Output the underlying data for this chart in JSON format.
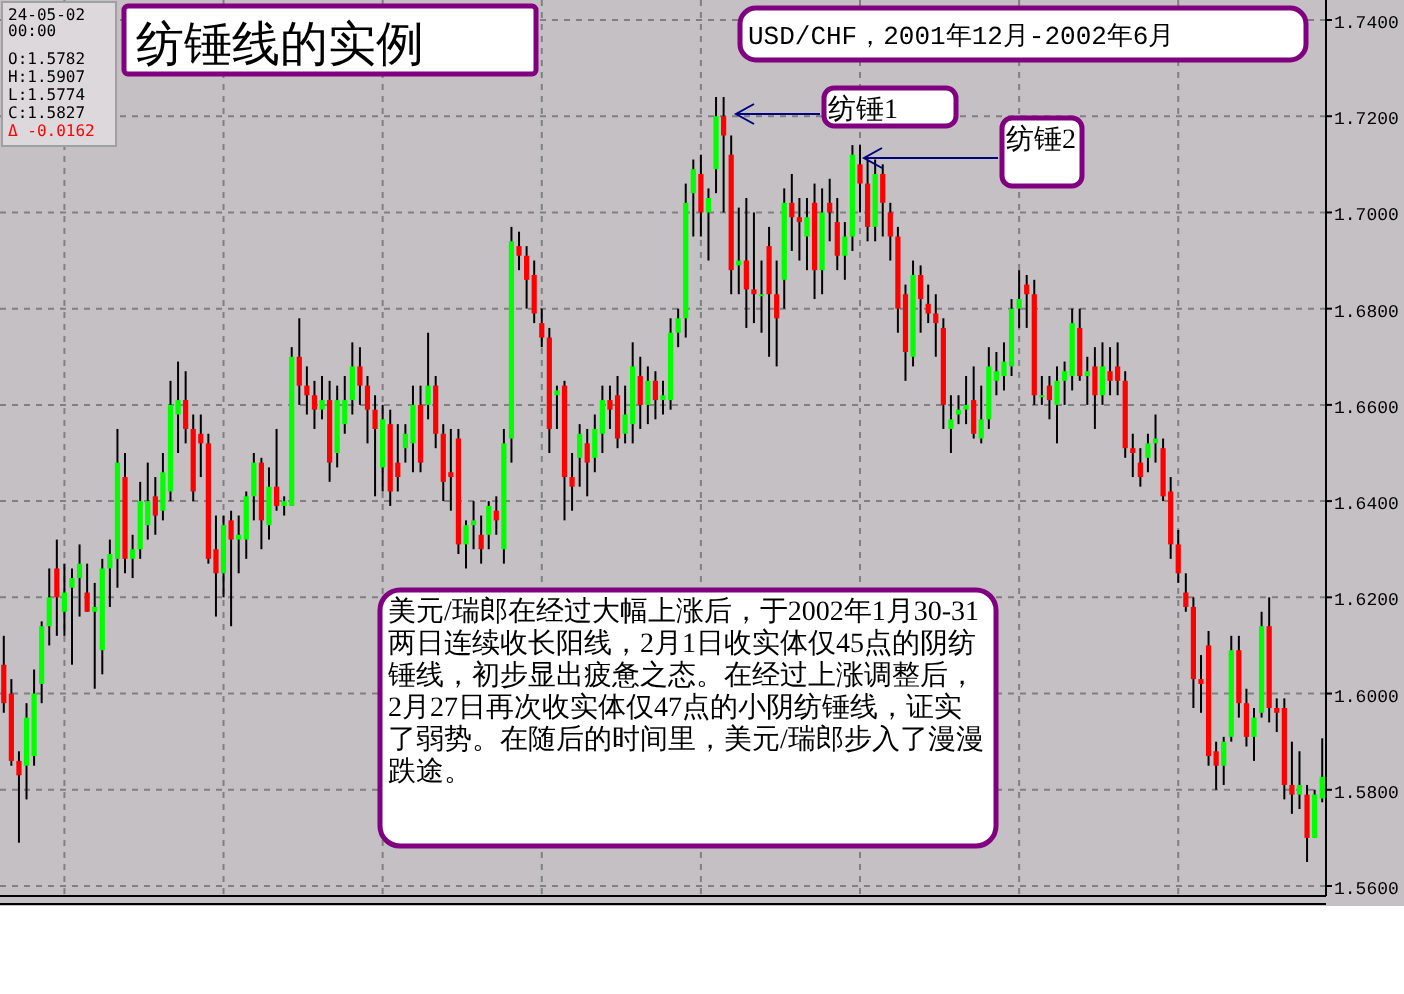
{
  "chart_data": {
    "type": "candlestick",
    "title": "纺锤线的实例",
    "subtitle": "USD/CHF，2001年12月-2002年6月",
    "categories": [
      null,
      null,
      null,
      null,
      null,
      null,
      null,
      null,
      null,
      null,
      null,
      null,
      null,
      null,
      null,
      null,
      null,
      null,
      null,
      null,
      null,
      null,
      null,
      null,
      null,
      null,
      null,
      null,
      null,
      null,
      null,
      null,
      null,
      null,
      null,
      null,
      null,
      null,
      null,
      null,
      null,
      null,
      null,
      null,
      null,
      null,
      null,
      null,
      null,
      null,
      null,
      null,
      null,
      null,
      null,
      null,
      null,
      null,
      null,
      null,
      null,
      null,
      null,
      null,
      null,
      null,
      null,
      null,
      null,
      null,
      null,
      null,
      null,
      null,
      null,
      null,
      null,
      null,
      null,
      null,
      null,
      null,
      null,
      null,
      null,
      null,
      null,
      null,
      null,
      null,
      null,
      null,
      null,
      null,
      null,
      null,
      null,
      null,
      null,
      null,
      null,
      null,
      null,
      null,
      null,
      null,
      null,
      null,
      null,
      null,
      null,
      null,
      null,
      null,
      null,
      null,
      null,
      null,
      null,
      null,
      null,
      null,
      null,
      null,
      null,
      null,
      null,
      null,
      null,
      null,
      null,
      null,
      null,
      null,
      null,
      null,
      null,
      null,
      null,
      null,
      null,
      null,
      null,
      null,
      null,
      null,
      null,
      null,
      null,
      null,
      null,
      null,
      null,
      null,
      null,
      null,
      null,
      null,
      null,
      null,
      null,
      null,
      null,
      null,
      null,
      null,
      null,
      null,
      null,
      null,
      null,
      null,
      null,
      null,
      null
    ],
    "ohlc": [
      [
        1.606,
        1.612,
        1.596,
        1.598
      ],
      [
        1.6,
        1.603,
        1.585,
        1.586
      ],
      [
        1.586,
        1.588,
        1.569,
        1.583
      ],
      [
        1.585,
        1.598,
        1.578,
        1.595
      ],
      [
        1.587,
        1.605,
        1.585,
        1.6
      ],
      [
        1.602,
        1.615,
        1.598,
        1.614
      ],
      [
        1.614,
        1.626,
        1.61,
        1.62
      ],
      [
        1.626,
        1.632,
        1.612,
        1.62
      ],
      [
        1.617,
        1.627,
        1.612,
        1.621
      ],
      [
        1.622,
        1.626,
        1.606,
        1.624
      ],
      [
        1.624,
        1.631,
        1.616,
        1.627
      ],
      [
        1.621,
        1.627,
        1.617,
        1.617
      ],
      [
        1.617,
        1.623,
        1.601,
        1.618
      ],
      [
        1.609,
        1.628,
        1.604,
        1.626
      ],
      [
        1.626,
        1.632,
        1.618,
        1.629
      ],
      [
        1.628,
        1.655,
        1.622,
        1.648
      ],
      [
        1.645,
        1.65,
        1.625,
        1.628
      ],
      [
        1.628,
        1.633,
        1.624,
        1.63
      ],
      [
        1.63,
        1.644,
        1.628,
        1.64
      ],
      [
        1.635,
        1.648,
        1.632,
        1.64
      ],
      [
        1.641,
        1.645,
        1.633,
        1.637
      ],
      [
        1.638,
        1.65,
        1.636,
        1.646
      ],
      [
        1.642,
        1.665,
        1.64,
        1.66
      ],
      [
        1.658,
        1.669,
        1.65,
        1.661
      ],
      [
        1.661,
        1.667,
        1.652,
        1.655
      ],
      [
        1.655,
        1.658,
        1.64,
        1.642
      ],
      [
        1.654,
        1.658,
        1.645,
        1.652
      ],
      [
        1.652,
        1.654,
        1.627,
        1.628
      ],
      [
        1.63,
        1.637,
        1.616,
        1.625
      ],
      [
        1.625,
        1.637,
        1.62,
        1.635
      ],
      [
        1.636,
        1.638,
        1.614,
        1.632
      ],
      [
        1.632,
        1.637,
        1.625,
        1.633
      ],
      [
        1.632,
        1.642,
        1.628,
        1.641
      ],
      [
        1.641,
        1.65,
        1.636,
        1.648
      ],
      [
        1.648,
        1.649,
        1.63,
        1.636
      ],
      [
        1.635,
        1.647,
        1.632,
        1.643
      ],
      [
        1.643,
        1.655,
        1.638,
        1.639
      ],
      [
        1.639,
        1.641,
        1.637,
        1.64
      ],
      [
        1.639,
        1.672,
        1.639,
        1.67
      ],
      [
        1.67,
        1.678,
        1.66,
        1.664
      ],
      [
        1.664,
        1.668,
        1.658,
        1.662
      ],
      [
        1.662,
        1.665,
        1.655,
        1.659
      ],
      [
        1.659,
        1.666,
        1.657,
        1.661
      ],
      [
        1.661,
        1.665,
        1.644,
        1.648
      ],
      [
        1.65,
        1.664,
        1.647,
        1.661
      ],
      [
        1.656,
        1.666,
        1.654,
        1.661
      ],
      [
        1.661,
        1.673,
        1.658,
        1.668
      ],
      [
        1.668,
        1.672,
        1.66,
        1.664
      ],
      [
        1.664,
        1.666,
        1.652,
        1.659
      ],
      [
        1.659,
        1.662,
        1.641,
        1.655
      ],
      [
        1.647,
        1.66,
        1.642,
        1.657
      ],
      [
        1.656,
        1.659,
        1.639,
        1.642
      ],
      [
        1.648,
        1.656,
        1.642,
        1.645
      ],
      [
        1.651,
        1.656,
        1.648,
        1.654
      ],
      [
        1.652,
        1.664,
        1.646,
        1.66
      ],
      [
        1.66,
        1.664,
        1.646,
        1.648
      ],
      [
        1.66,
        1.675,
        1.657,
        1.664
      ],
      [
        1.664,
        1.666,
        1.651,
        1.654
      ],
      [
        1.654,
        1.656,
        1.64,
        1.644
      ],
      [
        1.646,
        1.655,
        1.638,
        1.645
      ],
      [
        1.653,
        1.655,
        1.629,
        1.631
      ],
      [
        1.631,
        1.636,
        1.626,
        1.635
      ],
      [
        1.635,
        1.64,
        1.63,
        1.636
      ],
      [
        1.633,
        1.637,
        1.627,
        1.63
      ],
      [
        1.633,
        1.64,
        1.63,
        1.639
      ],
      [
        1.638,
        1.641,
        1.633,
        1.636
      ],
      [
        1.63,
        1.655,
        1.627,
        1.652
      ],
      [
        1.653,
        1.697,
        1.648,
        1.694
      ],
      [
        1.693,
        1.696,
        1.688,
        1.691
      ],
      [
        1.691,
        1.693,
        1.68,
        1.686
      ],
      [
        1.687,
        1.69,
        1.677,
        1.679
      ],
      [
        1.677,
        1.68,
        1.672,
        1.674
      ],
      [
        1.674,
        1.676,
        1.65,
        1.655
      ],
      [
        1.662,
        1.664,
        1.655,
        1.663
      ],
      [
        1.664,
        1.665,
        1.636,
        1.645
      ],
      [
        1.645,
        1.65,
        1.638,
        1.643
      ],
      [
        1.649,
        1.656,
        1.643,
        1.654
      ],
      [
        1.652,
        1.655,
        1.641,
        1.648
      ],
      [
        1.649,
        1.658,
        1.646,
        1.655
      ],
      [
        1.654,
        1.664,
        1.65,
        1.661
      ],
      [
        1.661,
        1.664,
        1.655,
        1.659
      ],
      [
        1.662,
        1.666,
        1.651,
        1.653
      ],
      [
        1.654,
        1.664,
        1.652,
        1.658
      ],
      [
        1.656,
        1.673,
        1.652,
        1.668
      ],
      [
        1.666,
        1.67,
        1.655,
        1.66
      ],
      [
        1.66,
        1.668,
        1.656,
        1.665
      ],
      [
        1.665,
        1.667,
        1.657,
        1.661
      ],
      [
        1.661,
        1.665,
        1.658,
        1.662
      ],
      [
        1.661,
        1.678,
        1.659,
        1.675
      ],
      [
        1.675,
        1.68,
        1.672,
        1.678
      ],
      [
        1.678,
        1.706,
        1.674,
        1.702
      ],
      [
        1.704,
        1.711,
        1.695,
        1.709
      ],
      [
        1.708,
        1.712,
        1.695,
        1.7
      ],
      [
        1.7,
        1.705,
        1.69,
        1.703
      ],
      [
        1.709,
        1.724,
        1.704,
        1.72
      ],
      [
        1.72,
        1.724,
        1.7,
        1.716
      ],
      [
        1.712,
        1.716,
        1.683,
        1.688
      ],
      [
        1.689,
        1.701,
        1.683,
        1.69
      ],
      [
        1.69,
        1.703,
        1.676,
        1.684
      ],
      [
        1.684,
        1.7,
        1.677,
        1.683
      ],
      [
        1.683,
        1.69,
        1.675,
        1.683
      ],
      [
        1.693,
        1.697,
        1.67,
        1.683
      ],
      [
        1.683,
        1.69,
        1.668,
        1.678
      ],
      [
        1.686,
        1.705,
        1.68,
        1.702
      ],
      [
        1.702,
        1.708,
        1.692,
        1.699
      ],
      [
        1.699,
        1.703,
        1.69,
        1.698
      ],
      [
        1.695,
        1.703,
        1.688,
        1.699
      ],
      [
        1.702,
        1.706,
        1.682,
        1.688
      ],
      [
        1.688,
        1.705,
        1.683,
        1.7
      ],
      [
        1.702,
        1.707,
        1.694,
        1.7
      ],
      [
        1.698,
        1.703,
        1.688,
        1.691
      ],
      [
        1.691,
        1.698,
        1.686,
        1.695
      ],
      [
        1.695,
        1.714,
        1.692,
        1.712
      ],
      [
        1.71,
        1.714,
        1.7,
        1.706
      ],
      [
        1.706,
        1.711,
        1.694,
        1.697
      ],
      [
        1.697,
        1.711,
        1.694,
        1.708
      ],
      [
        1.708,
        1.71,
        1.695,
        1.702
      ],
      [
        1.7,
        1.702,
        1.69,
        1.695
      ],
      [
        1.695,
        1.697,
        1.675,
        1.68
      ],
      [
        1.683,
        1.685,
        1.665,
        1.671
      ],
      [
        1.67,
        1.69,
        1.668,
        1.687
      ],
      [
        1.687,
        1.689,
        1.675,
        1.682
      ],
      [
        1.681,
        1.685,
        1.677,
        1.679
      ],
      [
        1.679,
        1.683,
        1.67,
        1.677
      ],
      [
        1.676,
        1.678,
        1.655,
        1.66
      ],
      [
        1.655,
        1.662,
        1.65,
        1.657
      ],
      [
        1.658,
        1.662,
        1.656,
        1.659
      ],
      [
        1.659,
        1.666,
        1.656,
        1.66
      ],
      [
        1.661,
        1.668,
        1.653,
        1.654
      ],
      [
        1.653,
        1.664,
        1.652,
        1.657
      ],
      [
        1.657,
        1.672,
        1.655,
        1.668
      ],
      [
        1.665,
        1.671,
        1.662,
        1.667
      ],
      [
        1.666,
        1.673,
        1.663,
        1.669
      ],
      [
        1.668,
        1.682,
        1.666,
        1.68
      ],
      [
        1.68,
        1.688,
        1.676,
        1.682
      ],
      [
        1.685,
        1.687,
        1.676,
        1.683
      ],
      [
        1.683,
        1.686,
        1.66,
        1.662
      ],
      [
        1.662,
        1.666,
        1.66,
        1.662
      ],
      [
        1.664,
        1.666,
        1.657,
        1.661
      ],
      [
        1.66,
        1.668,
        1.652,
        1.665
      ],
      [
        1.665,
        1.669,
        1.66,
        1.667
      ],
      [
        1.666,
        1.68,
        1.663,
        1.677
      ],
      [
        1.676,
        1.68,
        1.665,
        1.666
      ],
      [
        1.666,
        1.67,
        1.66,
        1.667
      ],
      [
        1.668,
        1.672,
        1.655,
        1.662
      ],
      [
        1.662,
        1.673,
        1.66,
        1.668
      ],
      [
        1.667,
        1.672,
        1.662,
        1.665
      ],
      [
        1.668,
        1.673,
        1.662,
        1.665
      ],
      [
        1.665,
        1.667,
        1.649,
        1.651
      ],
      [
        1.651,
        1.654,
        1.645,
        1.65
      ],
      [
        1.648,
        1.651,
        1.643,
        1.645
      ],
      [
        1.649,
        1.654,
        1.646,
        1.652
      ],
      [
        1.652,
        1.658,
        1.648,
        1.653
      ],
      [
        1.651,
        1.653,
        1.64,
        1.641
      ],
      [
        1.642,
        1.645,
        1.628,
        1.631
      ],
      [
        1.631,
        1.634,
        1.623,
        1.625
      ],
      [
        1.621,
        1.625,
        1.617,
        1.618
      ],
      [
        1.618,
        1.62,
        1.597,
        1.603
      ],
      [
        1.603,
        1.608,
        1.596,
        1.602
      ],
      [
        1.61,
        1.613,
        1.585,
        1.587
      ],
      [
        1.588,
        1.59,
        1.58,
        1.585
      ],
      [
        1.585,
        1.591,
        1.581,
        1.59
      ],
      [
        1.591,
        1.612,
        1.59,
        1.609
      ],
      [
        1.609,
        1.612,
        1.595,
        1.598
      ],
      [
        1.598,
        1.601,
        1.589,
        1.591
      ],
      [
        1.591,
        1.597,
        1.586,
        1.595
      ],
      [
        1.596,
        1.617,
        1.595,
        1.614
      ],
      [
        1.614,
        1.62,
        1.594,
        1.597
      ],
      [
        1.597,
        1.599,
        1.592,
        1.596
      ],
      [
        1.597,
        1.599,
        1.578,
        1.581
      ],
      [
        1.581,
        1.59,
        1.575,
        1.579
      ],
      [
        1.579,
        1.588,
        1.576,
        1.581
      ],
      [
        1.579,
        1.581,
        1.565,
        1.57
      ],
      [
        1.57,
        1.58,
        1.57,
        1.579
      ],
      [
        1.5782,
        1.5907,
        1.5774,
        1.5827
      ]
    ],
    "ylim": [
      1.56,
      1.74
    ],
    "yticks": [
      {
        "value": 1.56,
        "label": "1.5600"
      },
      {
        "value": 1.58,
        "label": "1.5800"
      },
      {
        "value": 1.6,
        "label": "1.6000"
      },
      {
        "value": 1.62,
        "label": "1.6200"
      },
      {
        "value": 1.64,
        "label": "1.6400"
      },
      {
        "value": 1.66,
        "label": "1.6600"
      },
      {
        "value": 1.68,
        "label": "1.6800"
      },
      {
        "value": 1.7,
        "label": "1.7000"
      },
      {
        "value": 1.72,
        "label": "1.7200"
      },
      {
        "value": 1.74,
        "label": "1.7400"
      }
    ],
    "grid": true,
    "tick_labels": "y",
    "annotations": [
      "24-05-02",
      "00:00",
      "O:1.5782",
      "H:1.5907",
      "L:1.5774",
      "C:1.5827",
      "Δ -0.0162",
      "纺锤1",
      "纺锤2",
      "美元/瑞郎在经过大幅上涨后，于2002年1月30-31两日连续收长阳线，2月1日收实体仅45点的阴纺锤线，初步显出疲惫之态。在经过上涨调整后，2月27日再次收实体仅47点的小阴纺锤线，证实了弱势。在随后的时间里，美元/瑞郎步入了漫漫跌途。"
    ]
  }
}
